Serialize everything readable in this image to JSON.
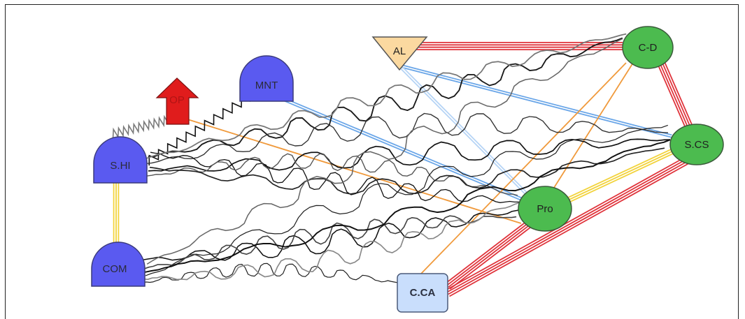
{
  "diagram": {
    "nodes": [
      {
        "id": "al",
        "label": "AL",
        "shape": "triangle-down",
        "color": "#fbd9a0"
      },
      {
        "id": "cd",
        "label": "C-D",
        "shape": "ellipse",
        "color": "#4cbb4f"
      },
      {
        "id": "mnt",
        "label": "MNT",
        "shape": "dome",
        "color": "#5a5af0"
      },
      {
        "id": "op",
        "label": "OP",
        "shape": "arrow-up",
        "color": "#e01c1c"
      },
      {
        "id": "shi",
        "label": "S.HI",
        "shape": "dome",
        "color": "#5a5af0"
      },
      {
        "id": "scs",
        "label": "S.CS",
        "shape": "ellipse",
        "color": "#4cbb4f"
      },
      {
        "id": "pro",
        "label": "Pro",
        "shape": "ellipse",
        "color": "#4cbb4f"
      },
      {
        "id": "com",
        "label": "COM",
        "shape": "dome",
        "color": "#5a5af0"
      },
      {
        "id": "cca",
        "label": "C.CA",
        "shape": "rounded-rect",
        "color": "#c9defc"
      }
    ],
    "edges": [
      {
        "from": "al",
        "to": "cd",
        "color": "#e0343c",
        "lines": 4
      },
      {
        "from": "cd",
        "to": "scs",
        "color": "#e0343c",
        "lines": 4
      },
      {
        "from": "cca",
        "to": "scs",
        "color": "#e0343c",
        "lines": 4
      },
      {
        "from": "cca",
        "to": "pro",
        "color": "#e0343c",
        "lines": 4
      },
      {
        "from": "pro",
        "to": "scs",
        "color": "#f2d33c",
        "lines": 3
      },
      {
        "from": "shi",
        "to": "com",
        "color": "#f2d33c",
        "lines": 3
      },
      {
        "from": "al",
        "to": "scs",
        "color": "#6aa6e8",
        "lines": 2
      },
      {
        "from": "mnt",
        "to": "pro",
        "color": "#6aa6e8",
        "lines": 2
      },
      {
        "from": "al",
        "to": "pro",
        "color": "#b6d4f5",
        "lines": 2
      },
      {
        "from": "op",
        "to": "pro",
        "color": "#f09a3c",
        "lines": 1
      },
      {
        "from": "cd",
        "to": "pro",
        "color": "#f09a3c",
        "lines": 1
      },
      {
        "from": "cd",
        "to": "cca",
        "color": "#f09a3c",
        "lines": 1
      },
      {
        "from": "op",
        "to": "shi",
        "color": "#7a7a7a",
        "lines": 1,
        "style": "zigzag"
      },
      {
        "from": "mnt",
        "to": "shi",
        "color": "#111111",
        "lines": 1,
        "style": "zigzag"
      }
    ],
    "scribbles": [
      {
        "from": "shi",
        "to": "cd",
        "color": "#1a1a1a"
      },
      {
        "from": "shi",
        "to": "scs",
        "color": "#111111"
      },
      {
        "from": "shi",
        "to": "scs",
        "color": "#333333"
      },
      {
        "from": "shi",
        "to": "pro",
        "color": "#111111"
      },
      {
        "from": "shi",
        "to": "pro",
        "color": "#555555"
      },
      {
        "from": "shi",
        "to": "cd",
        "color": "#777777"
      },
      {
        "from": "shi",
        "to": "scs",
        "color": "#222222"
      },
      {
        "from": "com",
        "to": "pro",
        "color": "#111111"
      },
      {
        "from": "com",
        "to": "scs",
        "color": "#222222"
      },
      {
        "from": "com",
        "to": "pro",
        "color": "#444444"
      },
      {
        "from": "com",
        "to": "cca",
        "color": "#222222"
      },
      {
        "from": "com",
        "to": "cd",
        "color": "#666666"
      },
      {
        "from": "com",
        "to": "scs",
        "color": "#111111"
      },
      {
        "from": "com",
        "to": "pro",
        "color": "#888888"
      }
    ]
  }
}
